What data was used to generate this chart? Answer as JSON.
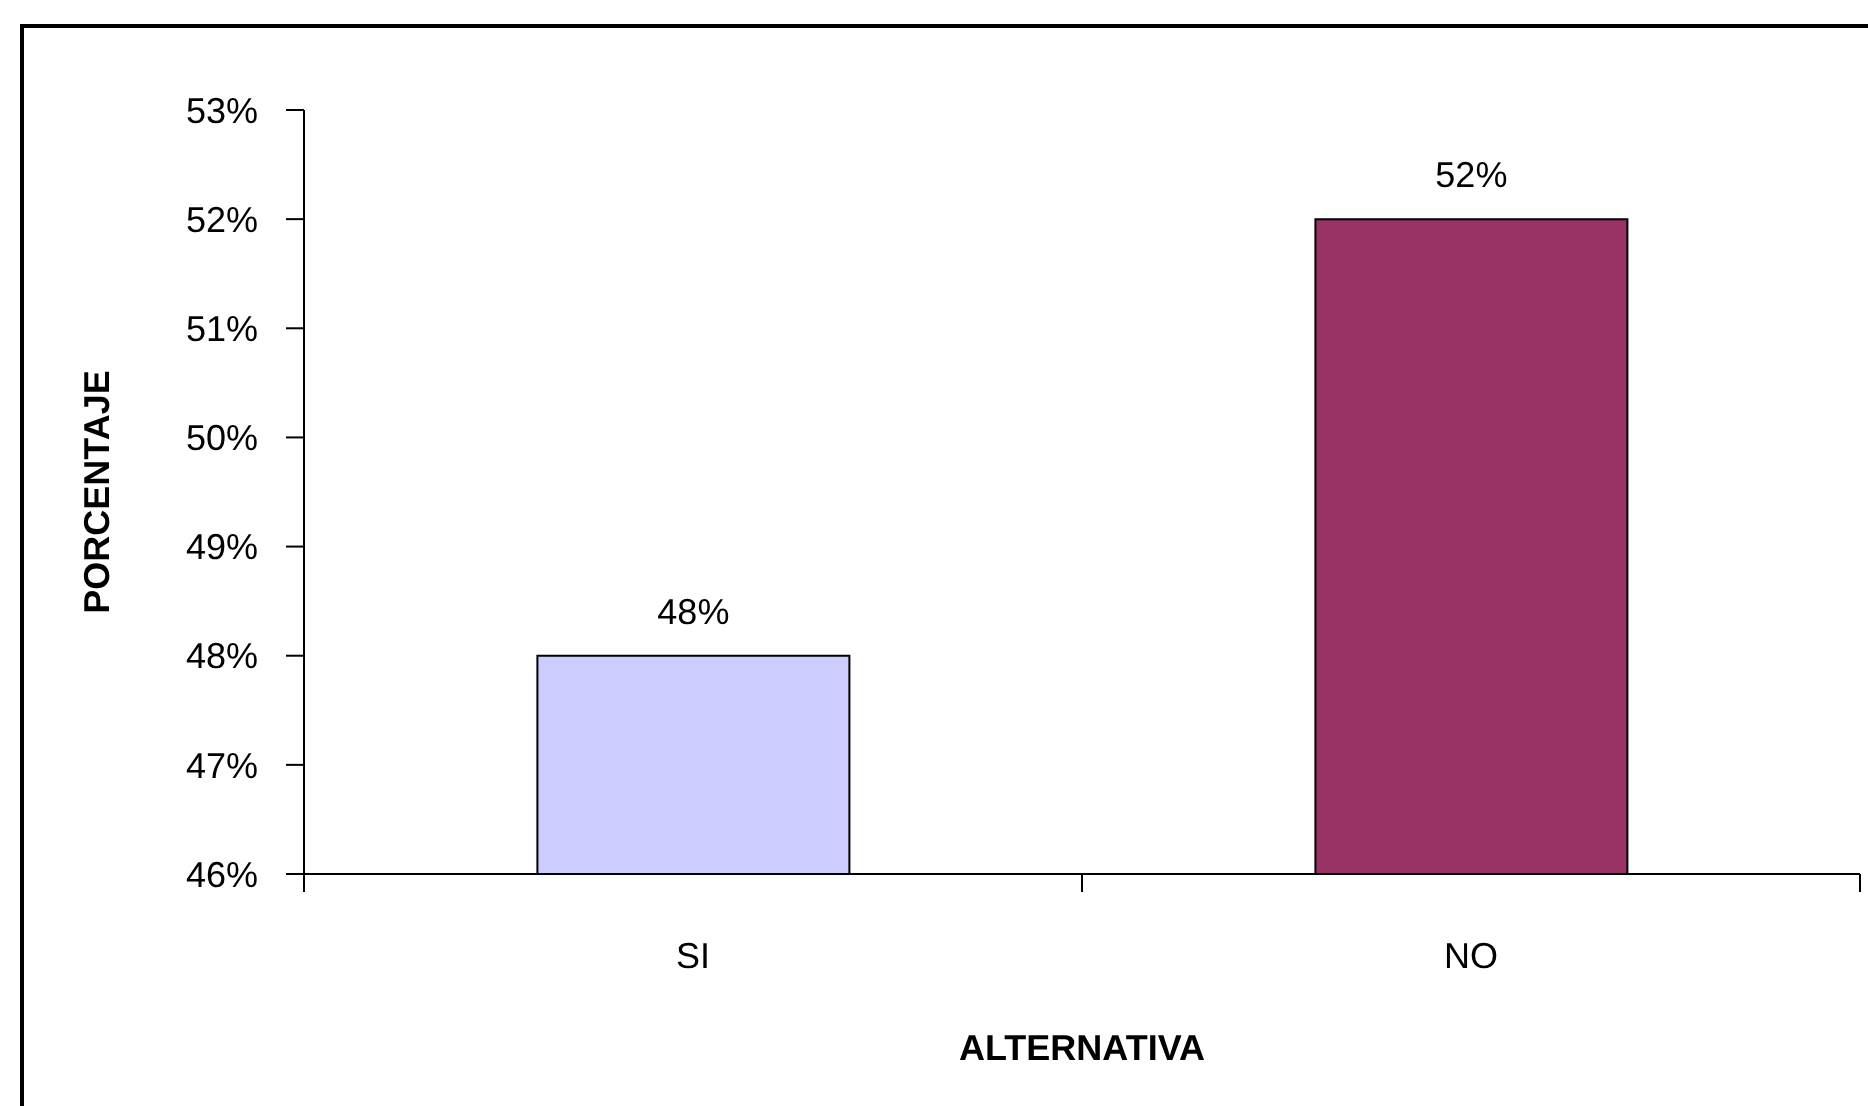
{
  "chart_data": {
    "type": "bar",
    "categories": [
      "SI",
      "NO"
    ],
    "values": [
      48,
      52
    ],
    "colors": [
      "#ccccff",
      "#993366"
    ],
    "value_labels": [
      "48%",
      "52%"
    ],
    "xlabel": "ALTERNATIVA",
    "ylabel": "PORCENTAJE",
    "ylim": [
      46,
      53
    ],
    "yticks": [
      {
        "value": 46,
        "label": "46%"
      },
      {
        "value": 47,
        "label": "47%"
      },
      {
        "value": 48,
        "label": "48%"
      },
      {
        "value": 49,
        "label": "49%"
      },
      {
        "value": 50,
        "label": "50%"
      },
      {
        "value": 51,
        "label": "51%"
      },
      {
        "value": 52,
        "label": "52%"
      },
      {
        "value": 53,
        "label": "53%"
      }
    ]
  }
}
